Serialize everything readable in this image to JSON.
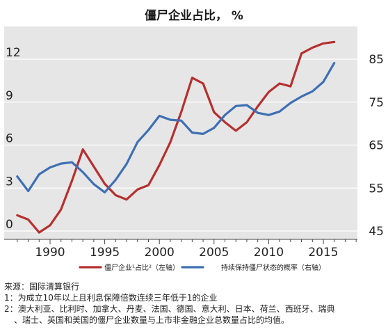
{
  "title": "僵尸企业占比， %",
  "chart_data": {
    "type": "line",
    "xlim": [
      1986.5,
      2019
    ],
    "x_ticks": [
      "1990",
      "1995",
      "2000",
      "2005",
      "2010",
      "2015"
    ],
    "y_left": {
      "ylim": [
        0,
        15
      ],
      "ticks": [
        "0",
        "3",
        "6",
        "9",
        "12"
      ]
    },
    "y_right": {
      "ylim": [
        45,
        90
      ],
      "ticks": [
        "45",
        "55",
        "65",
        "75",
        "85"
      ]
    },
    "grid": "horizontal",
    "legend_position": "bottom",
    "series": [
      {
        "name": "僵尸企业¹占比²（左轴）",
        "axis": "left",
        "color": "#b5302e",
        "x": [
          1987,
          1988,
          1989,
          1990,
          1991,
          1992,
          1993,
          1994,
          1995,
          1996,
          1997,
          1998,
          1999,
          2000,
          2001,
          2002,
          2003,
          2004,
          2005,
          2006,
          2007,
          2008,
          2009,
          2010,
          2011,
          2012,
          2013,
          2014,
          2015,
          2016
        ],
        "values": [
          1.1,
          0.8,
          -0.1,
          0.4,
          1.5,
          3.5,
          5.7,
          4.5,
          3.3,
          2.5,
          2.2,
          2.9,
          3.2,
          4.6,
          6.2,
          8.3,
          10.7,
          10.3,
          8.3,
          7.6,
          7.0,
          7.6,
          8.7,
          9.7,
          10.3,
          10.1,
          12.4,
          12.8,
          13.1,
          13.2
        ]
      },
      {
        "name": "持续保持僵尸状态的概率（右轴）",
        "axis": "right",
        "color": "#3e6fb3",
        "x": [
          1987,
          1988,
          1989,
          1990,
          1991,
          1992,
          1993,
          1994,
          1995,
          1996,
          1997,
          1998,
          1999,
          2000,
          2001,
          2002,
          2003,
          2004,
          2005,
          2006,
          2007,
          2008,
          2009,
          2010,
          2011,
          2012,
          2013,
          2014,
          2015,
          2016
        ],
        "values": [
          57.7,
          54.3,
          58.2,
          59.8,
          60.7,
          61.0,
          58.7,
          55.9,
          54.0,
          56.9,
          60.6,
          65.7,
          68.5,
          71.8,
          70.9,
          70.7,
          67.9,
          67.6,
          69.0,
          72.0,
          74.1,
          74.3,
          72.5,
          72.0,
          72.8,
          74.8,
          76.3,
          77.5,
          79.7,
          84.1
        ]
      }
    ]
  },
  "notes": {
    "source": "来源：国际清算银行",
    "note1": "1：为成立10年以上且利息保障倍数连续三年低于1的企业",
    "note2_line1": "2：澳大利亚、比利时、加拿大、丹麦、法国、德国、意大利、日本、荷兰、西班牙、瑞典",
    "note2_line2": "、瑞士、英国和美国的僵尸企业数量与上市非金融企业总数量占比的均值。"
  }
}
